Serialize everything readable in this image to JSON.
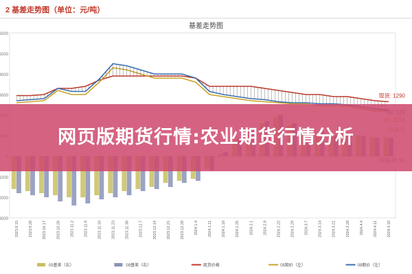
{
  "doc_heading": "2 基差走势图（单位：元/吨）",
  "overlay_banner": "网页版期货行情:农业期货行情分析",
  "chart_data": {
    "type": "line",
    "title": "基差走势图",
    "ylim_left": [
      -3000,
      6000
    ],
    "ylim_right": [
      -3000,
      6000
    ],
    "y_ticks": [
      6000,
      5000,
      4000,
      3000,
      2000,
      1000,
      0,
      -1000,
      -2000,
      -3000
    ],
    "categories": [
      "2023.9.15",
      "2023.9.28",
      "2023.10.17",
      "2023.10.26",
      "2023.11.2",
      "2023.11.9",
      "2023.11.16",
      "2023.11.23",
      "2023.11.30",
      "2023.12.7",
      "2023.12.14",
      "2023.12.21",
      "2023.12.28",
      "2024.1.4",
      "2024.1.11",
      "2024.1.18",
      "2024.1.25",
      "2024.2.1",
      "2024.2.8",
      "2024.2.22",
      "2024.2.29",
      "2024.3.7",
      "2024.3.14",
      "2024.3.21",
      "2024.3.28",
      "2024.4.4",
      "2024.4.11",
      "2024.4.18"
    ],
    "lines": [
      {
        "name": "现货价格",
        "color": "#c0392b",
        "values": [
          2950,
          2950,
          3000,
          3300,
          3300,
          3400,
          3700,
          3900,
          3900,
          3900,
          3900,
          3900,
          3900,
          3800,
          3400,
          3400,
          3400,
          3400,
          3300,
          3200,
          3100,
          3000,
          3000,
          2900,
          2900,
          2800,
          2700,
          2650
        ]
      },
      {
        "name": "05期价（左）",
        "color": "#c9a227",
        "values": [
          2600,
          2650,
          2700,
          3200,
          3000,
          3000,
          3600,
          4300,
          4200,
          4000,
          3800,
          3800,
          3800,
          3600,
          3000,
          2900,
          2800,
          2700,
          2650,
          2600,
          2550,
          2550,
          2450,
          2450,
          2450,
          2300,
          2200,
          2200
        ]
      },
      {
        "name": "09期价（左）",
        "color": "#3a6fb0",
        "values": [
          2700,
          2750,
          2800,
          3300,
          3150,
          3150,
          3750,
          4500,
          4400,
          4200,
          4000,
          4000,
          4000,
          3800,
          3150,
          3000,
          2900,
          2800,
          2750,
          2650,
          2600,
          2600,
          2550,
          2550,
          2500,
          2400,
          2300,
          2250
        ]
      }
    ],
    "bars": [
      {
        "name": "05基差（右）",
        "color": "#c8c060",
        "values": [
          -1600,
          -1700,
          -1800,
          -1900,
          -2000,
          -2000,
          -1900,
          -1800,
          -1700,
          -1600,
          -1500,
          -1300,
          -1200,
          -1100,
          -600,
          100,
          800,
          1300,
          1600,
          1900,
          1500,
          1200,
          1100,
          1000,
          1000,
          1000,
          900,
          900
        ]
      },
      {
        "name": "09基差（右）",
        "color": "#8a93b8",
        "values": [
          -1800,
          -1900,
          -2000,
          -2200,
          -2400,
          -2300,
          -2100,
          -2000,
          -1900,
          -1700,
          -1600,
          -1500,
          -1300,
          -1200,
          -700,
          200,
          900,
          1400,
          1700,
          2000,
          1600,
          1300,
          1200,
          1000,
          1000,
          1000,
          900,
          900
        ]
      }
    ],
    "annotations": [
      {
        "text": "现货: 1290",
        "series": "现货价格"
      },
      {
        "text": "09: 123",
        "series": "09期价（左）"
      },
      {
        "text": "05: 1204",
        "series": "05期价（左）"
      },
      {
        "text": "05基差",
        "series": "05基差（右）"
      },
      {
        "text": "09基差: 55",
        "series": "09基差（右）"
      }
    ],
    "legend": [
      "05基差（右）",
      "09基差（右）",
      "现货价格",
      "05期价（左）",
      "09期价（左）"
    ],
    "legend_position": "bottom",
    "grid": false
  }
}
